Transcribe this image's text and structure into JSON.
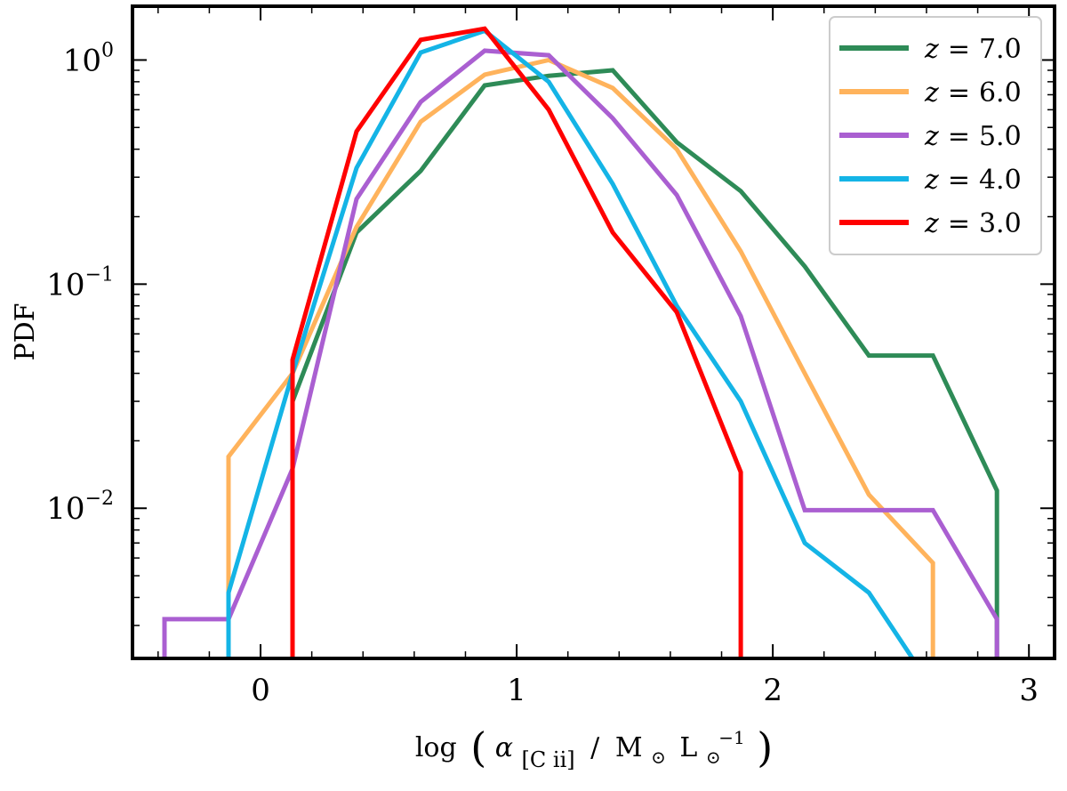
{
  "chart_data": {
    "type": "line",
    "title": "",
    "xlabel": "log (α[C II] / M⊙ L⊙⁻¹)",
    "ylabel": "PDF",
    "xlim": [
      -0.5,
      3.1
    ],
    "ylim_log10": [
      -2.67,
      0.24
    ],
    "yscale": "log",
    "x_ticks": [
      0,
      1,
      2,
      3
    ],
    "x_tick_labels": [
      "0",
      "1",
      "2",
      "3"
    ],
    "y_ticks_log10": [
      -2,
      -1,
      0
    ],
    "y_tick_labels": [
      {
        "base": "10",
        "exp": "−2"
      },
      {
        "base": "10",
        "exp": "−1"
      },
      {
        "base": "10",
        "exp": "0"
      }
    ],
    "xlabel_parts": {
      "log": "log",
      "alpha": "α",
      "sub": "[C ii]",
      "slash": "/",
      "msun": "M",
      "lsun": "L",
      "lexp": "−1"
    },
    "legend_position": "top-right",
    "series": [
      {
        "name": "z = 7.0",
        "z_value": "7.0",
        "color": "#2e8b57",
        "x": [
          0.125,
          0.375,
          0.625,
          0.875,
          1.125,
          1.375,
          1.625,
          1.875,
          2.125,
          2.375,
          2.625,
          2.875,
          2.875
        ],
        "y": [
          0.03,
          0.17,
          0.32,
          0.77,
          0.85,
          0.9,
          0.43,
          0.26,
          0.12,
          0.048,
          0.048,
          0.012,
          0.0021
        ]
      },
      {
        "name": "z = 6.0",
        "z_value": "6.0",
        "color": "#ffb35c",
        "x": [
          -0.125,
          -0.125,
          0.125,
          0.375,
          0.625,
          0.875,
          1.125,
          1.375,
          1.625,
          1.875,
          2.125,
          2.375,
          2.625,
          2.625
        ],
        "y": [
          0.0021,
          0.017,
          0.04,
          0.18,
          0.53,
          0.86,
          1.0,
          0.75,
          0.4,
          0.14,
          0.04,
          0.0115,
          0.0057,
          0.0021
        ]
      },
      {
        "name": "z = 5.0",
        "z_value": "5.0",
        "color": "#aa5fd1",
        "x": [
          -0.375,
          -0.375,
          -0.125,
          0.125,
          0.375,
          0.625,
          0.875,
          1.125,
          1.375,
          1.625,
          1.875,
          2.125,
          2.375,
          2.625,
          2.875,
          2.875
        ],
        "y": [
          0.0021,
          0.0032,
          0.0032,
          0.015,
          0.24,
          0.65,
          1.1,
          1.05,
          0.55,
          0.25,
          0.072,
          0.0098,
          0.0098,
          0.0098,
          0.0032,
          0.0021
        ]
      },
      {
        "name": "z = 4.0",
        "z_value": "4.0",
        "color": "#14b4e6",
        "x": [
          -0.125,
          -0.125,
          0.125,
          0.375,
          0.625,
          0.875,
          1.125,
          1.375,
          1.625,
          1.875,
          2.125,
          2.375,
          2.55
        ],
        "y": [
          0.0021,
          0.0042,
          0.04,
          0.33,
          1.08,
          1.35,
          0.8,
          0.28,
          0.08,
          0.03,
          0.007,
          0.0042,
          0.0021
        ]
      },
      {
        "name": "z = 3.0",
        "z_value": "3.0",
        "color": "#ff0000",
        "x": [
          0.125,
          0.125,
          0.375,
          0.625,
          0.875,
          1.125,
          1.375,
          1.625,
          1.875,
          1.875
        ],
        "y": [
          0.0021,
          0.046,
          0.48,
          1.23,
          1.38,
          0.6,
          0.17,
          0.075,
          0.0145,
          0.0021
        ]
      }
    ]
  }
}
